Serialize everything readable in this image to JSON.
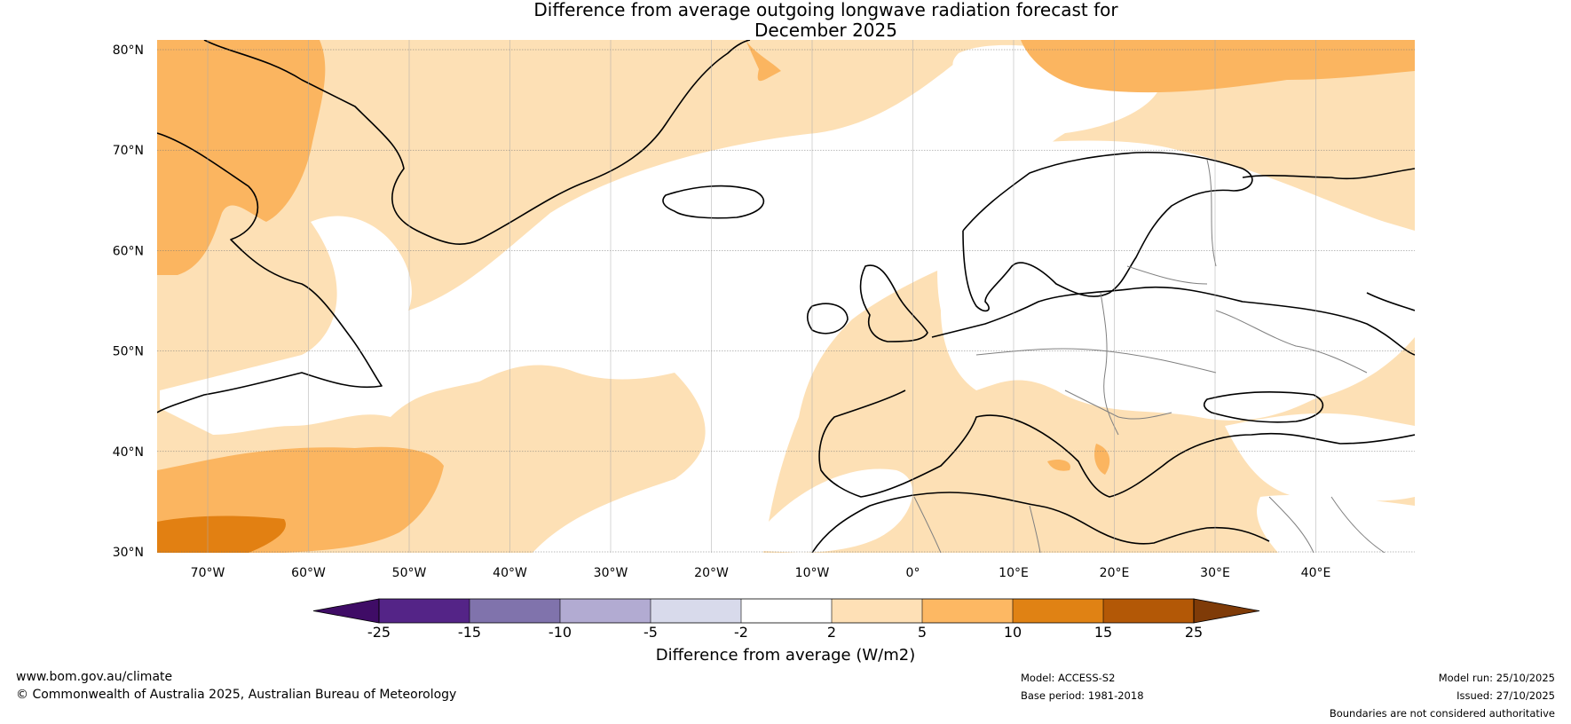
{
  "title": {
    "line1": "Difference from average outgoing longwave radiation forecast for",
    "line2": "December 2025"
  },
  "map": {
    "lat_labels": [
      "80°N",
      "70°N",
      "60°N",
      "50°N",
      "40°N",
      "30°N"
    ],
    "lon_labels": [
      "70°W",
      "60°W",
      "50°W",
      "40°W",
      "30°W",
      "20°W",
      "10°W",
      "0°",
      "10°E",
      "20°E",
      "30°E",
      "40°E"
    ],
    "region_colors": {
      "land_outline": "#000000",
      "border": "#808080",
      "light": "#fde0b5",
      "medium": "#fbb560",
      "dark": "#e28012"
    }
  },
  "colorbar": {
    "ticks": [
      "-25",
      "-15",
      "-10",
      "-5",
      "-2",
      "2",
      "5",
      "10",
      "15",
      "25"
    ],
    "colors": [
      "#3f0c66",
      "#542487",
      "#8073ac",
      "#b2abd2",
      "#d8daeb",
      "#ffffff",
      "#fee0b6",
      "#fdb863",
      "#e08214",
      "#b35806",
      "#7f3b08"
    ],
    "label": "Difference from average (W/m2)"
  },
  "footer": {
    "website": "www.bom.gov.au/climate",
    "copyright": "© Commonwealth of Australia 2025, Australian Bureau of Meteorology",
    "model": "Model: ACCESS-S2",
    "base_period": "Base period: 1981-2018",
    "model_run": "Model run: 25/10/2025",
    "issued": "Issued: 27/10/2025",
    "disclaimer": "Boundaries are not considered authoritative"
  }
}
